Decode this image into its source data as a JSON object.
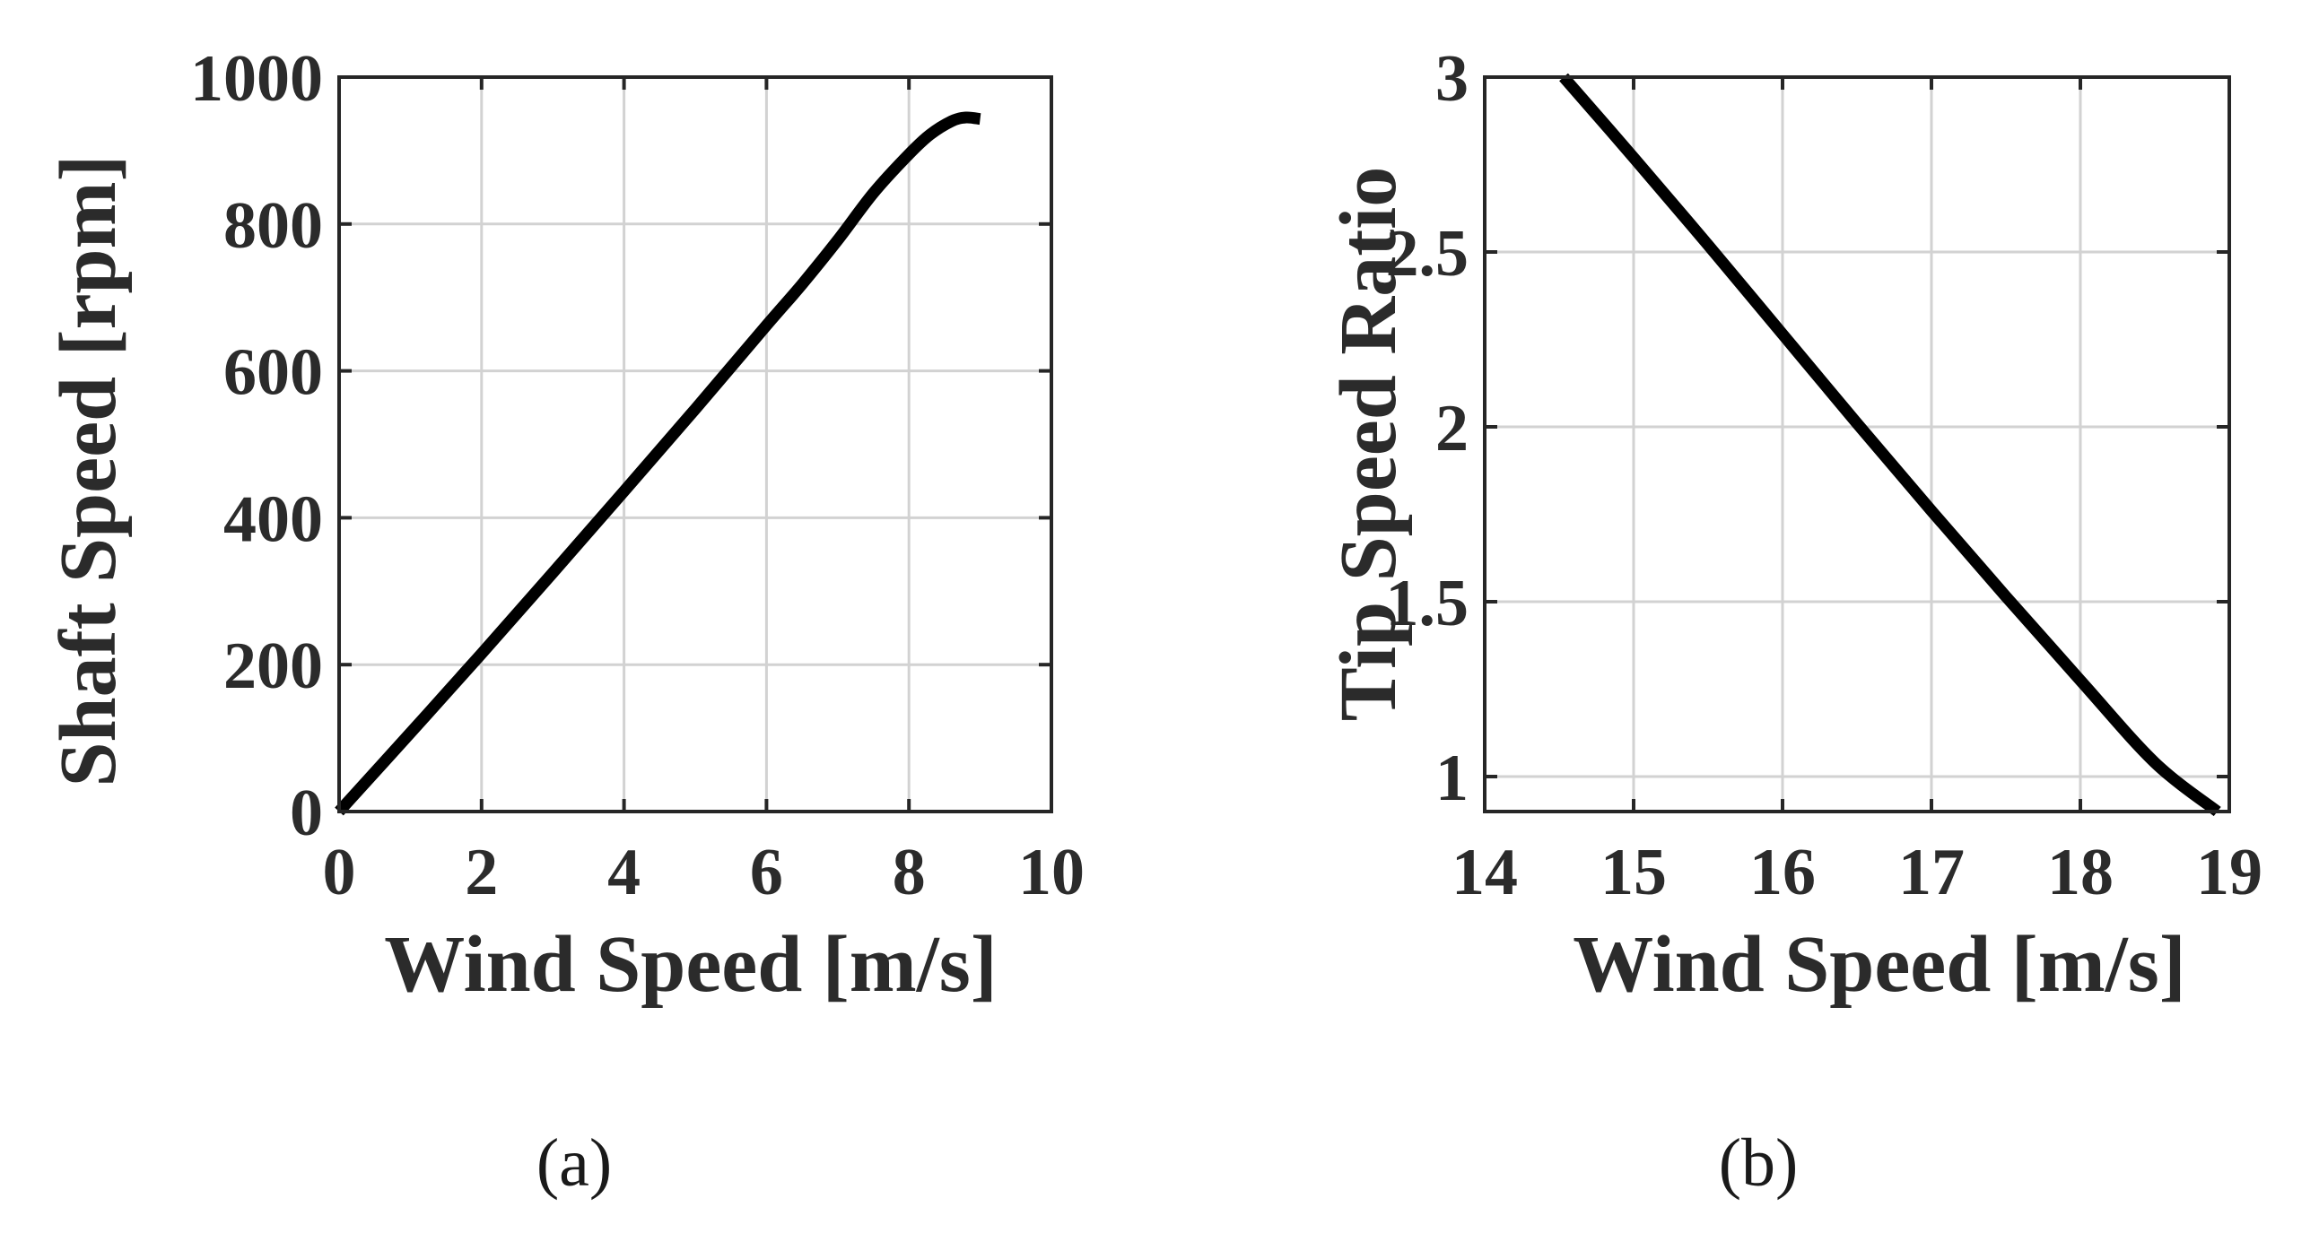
{
  "chart_data": [
    {
      "type": "line",
      "panel": "(a)",
      "xlabel": "Wind Speed [m/s]",
      "ylabel": "Shaft Speed [rpm]",
      "xlim": [
        0,
        10
      ],
      "ylim": [
        0,
        1000
      ],
      "xticks": [
        0,
        2,
        4,
        6,
        8,
        10
      ],
      "yticks": [
        0,
        200,
        400,
        600,
        800,
        1000
      ],
      "xtick_labels": [
        "0",
        "2",
        "4",
        "6",
        "8",
        "10"
      ],
      "ytick_labels": [
        "0",
        "200",
        "400",
        "600",
        "800",
        "1000"
      ],
      "grid": true,
      "series": [
        {
          "name": "Shaft Speed",
          "color": "#000000",
          "x": [
            0,
            1,
            2,
            3,
            4,
            5,
            6,
            6.5,
            7,
            7.5,
            8,
            8.3,
            8.6,
            8.8,
            9.0
          ],
          "y": [
            0,
            107,
            215,
            325,
            436,
            548,
            662,
            718,
            778,
            842,
            895,
            922,
            940,
            945,
            943
          ]
        }
      ]
    },
    {
      "type": "line",
      "panel": "(b)",
      "xlabel": "Wind Speed [m/s]",
      "ylabel": "Tip Speed Ratio",
      "xlim": [
        14,
        19
      ],
      "ylim": [
        0.9,
        3
      ],
      "xticks": [
        14,
        15,
        16,
        17,
        18,
        19
      ],
      "yticks": [
        1,
        1.5,
        2,
        2.5,
        3
      ],
      "xtick_labels": [
        "14",
        "15",
        "16",
        "17",
        "18",
        "19"
      ],
      "ytick_labels": [
        "1",
        "1.5",
        "2",
        "2.5",
        "3"
      ],
      "grid": true,
      "series": [
        {
          "name": "Tip Speed Ratio",
          "color": "#000000",
          "x": [
            14.53,
            15,
            15.5,
            16,
            16.5,
            17,
            17.5,
            18,
            18.5,
            18.92
          ],
          "y": [
            3.0,
            2.77,
            2.52,
            2.265,
            2.01,
            1.76,
            1.515,
            1.275,
            1.04,
            0.9
          ]
        }
      ]
    }
  ]
}
